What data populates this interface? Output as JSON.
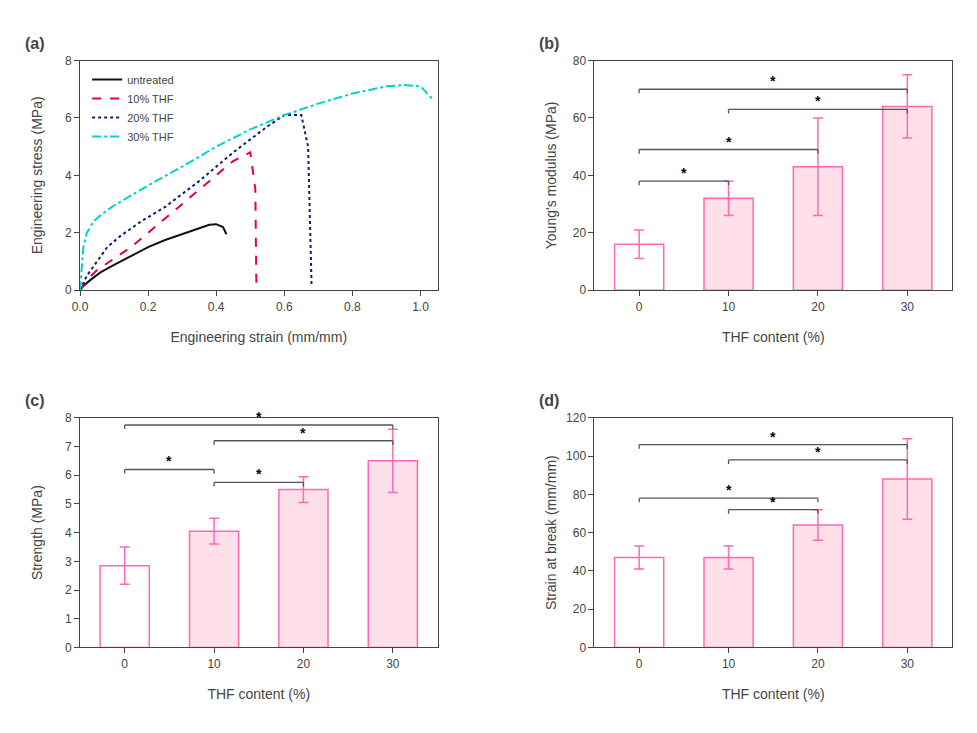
{
  "chart_data": [
    {
      "type": "line",
      "title": "(a)",
      "xlabel": "Engineering strain (mm/mm)",
      "ylabel": "Engineering stress (MPa)",
      "xlim": [
        0.0,
        1.05
      ],
      "ylim": [
        0,
        8
      ],
      "xticks": [
        {
          "value": 0.0,
          "label": "0.0"
        },
        0.2,
        0.4,
        0.6,
        0.8,
        {
          "value": 1.0,
          "label": "1.0"
        }
      ],
      "yticks": [
        0,
        2,
        4,
        6,
        8
      ],
      "grid": false,
      "legend": "upper left",
      "series": [
        {
          "name": "untreated",
          "color": "#111111",
          "line_style": "solid",
          "x": [
            0.0,
            0.01,
            0.03,
            0.06,
            0.1,
            0.15,
            0.2,
            0.25,
            0.3,
            0.35,
            0.38,
            0.4,
            0.42,
            0.43
          ],
          "values": [
            0.0,
            0.15,
            0.35,
            0.62,
            0.88,
            1.2,
            1.5,
            1.75,
            1.95,
            2.15,
            2.28,
            2.3,
            2.2,
            1.95
          ]
        },
        {
          "name": "10% THF",
          "color": "#e8003a",
          "line_style": "dashed",
          "x": [
            0.0,
            0.02,
            0.05,
            0.1,
            0.15,
            0.2,
            0.25,
            0.3,
            0.35,
            0.4,
            0.45,
            0.5,
            0.515,
            0.518
          ],
          "values": [
            0.0,
            0.35,
            0.7,
            1.1,
            1.5,
            2.0,
            2.5,
            3.0,
            3.5,
            4.0,
            4.5,
            4.8,
            3.5,
            0.05
          ]
        },
        {
          "name": "20% THF",
          "color": "#191970",
          "line_style": "dotted",
          "x": [
            0.0,
            0.02,
            0.05,
            0.08,
            0.12,
            0.18,
            0.25,
            0.35,
            0.45,
            0.55,
            0.6,
            0.65,
            0.67,
            0.68
          ],
          "values": [
            0.0,
            0.5,
            1.0,
            1.5,
            1.9,
            2.4,
            2.9,
            3.8,
            4.8,
            5.7,
            6.1,
            6.1,
            5.0,
            0.2
          ]
        },
        {
          "name": "30% THF",
          "color": "#00d4c8",
          "line_style": "dashdot",
          "x": [
            0.0,
            0.005,
            0.01,
            0.02,
            0.04,
            0.07,
            0.1,
            0.15,
            0.2,
            0.3,
            0.4,
            0.5,
            0.6,
            0.7,
            0.8,
            0.9,
            0.95,
            1.0,
            1.02,
            1.04
          ],
          "values": [
            0.0,
            0.9,
            1.5,
            2.0,
            2.4,
            2.7,
            2.95,
            3.3,
            3.65,
            4.3,
            5.0,
            5.6,
            6.1,
            6.5,
            6.85,
            7.1,
            7.15,
            7.1,
            6.85,
            6.6
          ]
        }
      ]
    },
    {
      "type": "bar",
      "title": "(b)",
      "xlabel": "THF content (%)",
      "ylabel": "Young's modulus (MPa)",
      "categories": [
        "0",
        "10",
        "20",
        "30"
      ],
      "values": [
        16,
        32,
        43,
        64
      ],
      "errors": [
        5,
        6,
        17,
        11
      ],
      "colors": [
        "#ffffff",
        "#ffe0e8",
        "#ffe0e8",
        "#ffe0e8"
      ],
      "color": "#ff69b4",
      "ylim": [
        0,
        80
      ],
      "yticks": [
        0,
        20,
        40,
        60,
        80
      ],
      "grid": false,
      "annotations": [
        {
          "x1": "0",
          "x2": "10",
          "y": 38,
          "text": "*",
          "color": "#555555"
        },
        {
          "x1": "0",
          "x2": "20",
          "y": 49,
          "text": "*",
          "color": "#555555"
        },
        {
          "x1": "0",
          "x2": "30",
          "y": 70,
          "text": "*",
          "color": "#555555"
        },
        {
          "x1": "10",
          "x2": "30",
          "y": 63,
          "text": "*",
          "color": "#555555"
        }
      ]
    },
    {
      "type": "bar",
      "title": "(c)",
      "xlabel": "THF content (%)",
      "ylabel": "Strength (MPa)",
      "categories": [
        "0",
        "10",
        "20",
        "30"
      ],
      "values": [
        2.85,
        4.05,
        5.5,
        6.5
      ],
      "errors": [
        0.65,
        0.45,
        0.45,
        1.1
      ],
      "colors": [
        "#ffffff",
        "#ffe0e8",
        "#ffe0e8",
        "#ffe0e8"
      ],
      "color": "#ff69b4",
      "ylim": [
        0,
        8
      ],
      "yticks": [
        0,
        1,
        2,
        3,
        4,
        5,
        6,
        7,
        8
      ],
      "grid": false,
      "annotations": [
        {
          "x1": "0",
          "x2": "10",
          "y": 6.2,
          "text": "*",
          "color": "#555555"
        },
        {
          "x1": "10",
          "x2": "20",
          "y": 5.75,
          "text": "*",
          "color": "#555555"
        },
        {
          "x1": "0",
          "x2": "30",
          "y": 7.75,
          "text": "*",
          "color": "#555555"
        },
        {
          "x1": "10",
          "x2": "30",
          "y": 7.2,
          "text": "*",
          "color": "#555555"
        }
      ]
    },
    {
      "type": "bar",
      "title": "(d)",
      "xlabel": "THF content (%)",
      "ylabel": "Strain at break (mm/mm)",
      "categories": [
        "0",
        "10",
        "20",
        "30"
      ],
      "values": [
        47,
        47,
        64,
        88
      ],
      "errors": [
        6,
        6,
        8,
        21
      ],
      "colors": [
        "#ffffff",
        "#ffe0e8",
        "#ffe0e8",
        "#ffe0e8"
      ],
      "color": "#ff69b4",
      "ylim": [
        0,
        120
      ],
      "yticks": [
        0,
        20,
        40,
        60,
        80,
        100,
        120
      ],
      "grid": false,
      "annotations": [
        {
          "x1": "0",
          "x2": "20",
          "y": 78,
          "text": "*",
          "color": "#555555"
        },
        {
          "x1": "10",
          "x2": "20",
          "y": 72,
          "text": "*",
          "color": "#555555"
        },
        {
          "x1": "0",
          "x2": "30",
          "y": 106,
          "text": "*",
          "color": "#555555"
        },
        {
          "x1": "10",
          "x2": "30",
          "y": 98,
          "text": "*",
          "color": "#555555"
        }
      ]
    }
  ]
}
